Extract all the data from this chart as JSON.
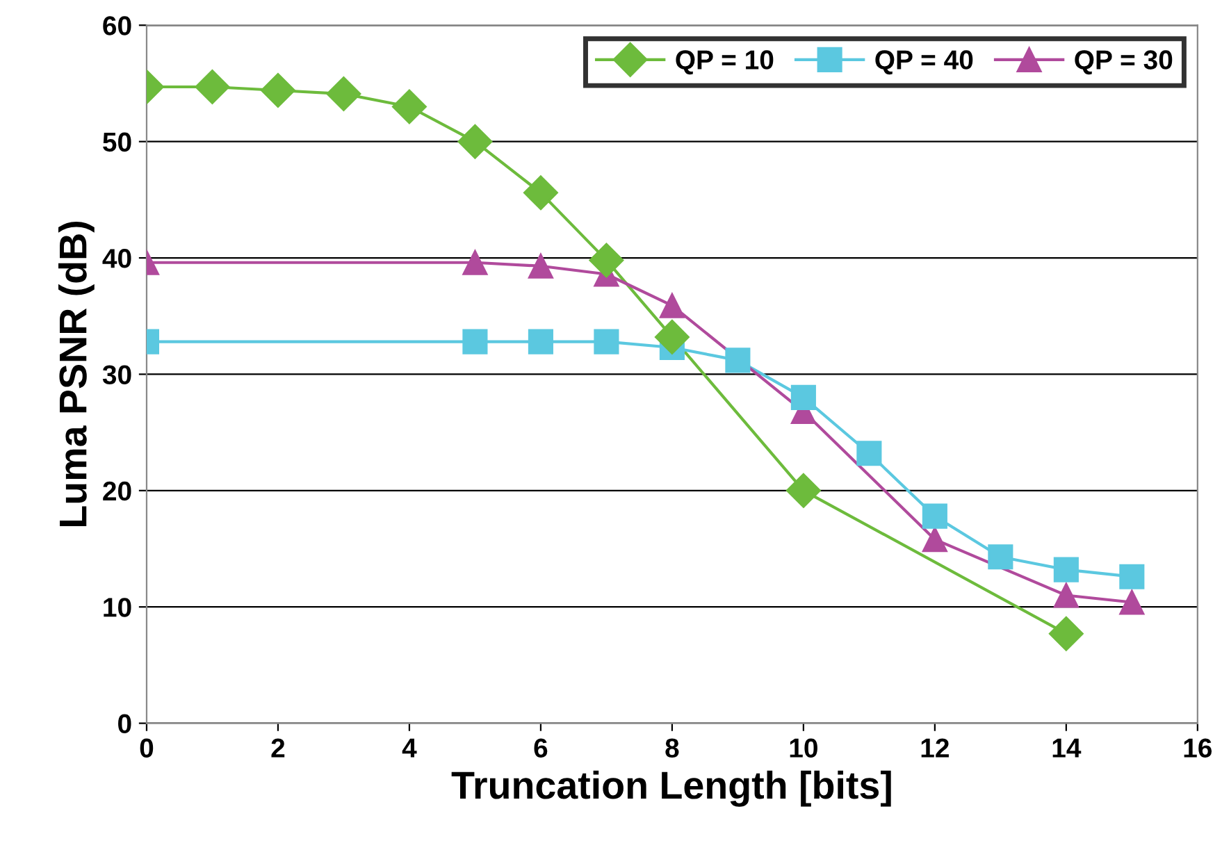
{
  "chart_data": {
    "type": "line",
    "xlabel": "Truncation Length [bits]",
    "ylabel": "Luma PSNR (dB)",
    "xlim": [
      0,
      16
    ],
    "xticks": [
      0,
      2,
      4,
      6,
      8,
      10,
      12,
      14,
      16
    ],
    "ylim": [
      0,
      60
    ],
    "yticks": [
      0,
      10,
      20,
      30,
      40,
      50,
      60
    ],
    "grid": "y",
    "legend": "top right",
    "series": [
      {
        "name": "QP = 10",
        "color": "#6dbb3c",
        "marker": "diamond",
        "x": [
          0,
          1,
          2,
          3,
          4,
          5,
          6,
          7,
          8,
          10,
          14
        ],
        "values": [
          54.7,
          54.7,
          54.4,
          54.1,
          53.0,
          50.0,
          45.6,
          39.8,
          33.2,
          20.0,
          7.7
        ]
      },
      {
        "name": "QP = 40",
        "color": "#5bc8e0",
        "marker": "square",
        "x": [
          0,
          5,
          6,
          7,
          8,
          9,
          10,
          11,
          12,
          13,
          14,
          15
        ],
        "values": [
          32.8,
          32.8,
          32.8,
          32.8,
          32.3,
          31.2,
          28.0,
          23.2,
          17.8,
          14.3,
          13.2,
          12.6
        ]
      },
      {
        "name": "QP = 30",
        "color": "#b04a9c",
        "marker": "triangle",
        "x": [
          0,
          5,
          6,
          7,
          8,
          10,
          12,
          14,
          15
        ],
        "values": [
          39.6,
          39.6,
          39.3,
          38.6,
          35.9,
          26.8,
          15.8,
          11.0,
          10.4
        ]
      }
    ]
  }
}
